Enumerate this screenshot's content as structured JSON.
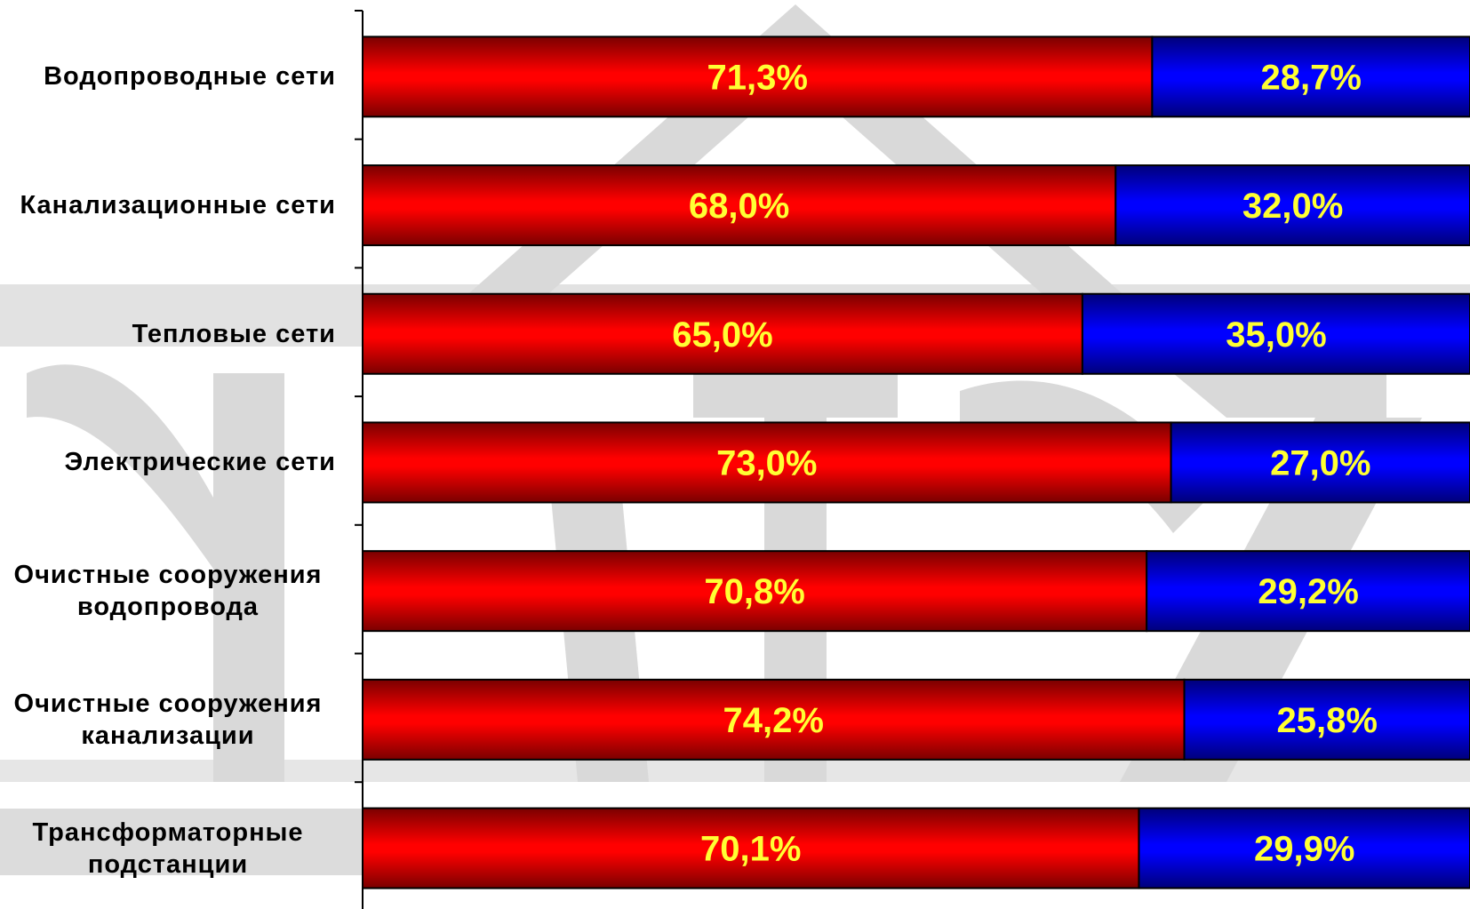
{
  "chart_data": {
    "type": "bar",
    "orientation": "horizontal",
    "stacked": true,
    "categories": [
      [
        "Водопроводные сети"
      ],
      [
        "Канализационные сети"
      ],
      [
        "Тепловые сети"
      ],
      [
        "Электрические сети"
      ],
      [
        "Очистные сооружения",
        "водопровода"
      ],
      [
        "Очистные сооружения",
        "канализации"
      ],
      [
        "Трансформаторные",
        "подстанции"
      ]
    ],
    "series": [
      {
        "color": "#e00000",
        "values": [
          71.3,
          68.0,
          65.0,
          73.0,
          70.8,
          74.2,
          70.1
        ],
        "labels": [
          "71,3%",
          "68,0%",
          "65,0%",
          "73,0%",
          "70,8%",
          "74,2%",
          "70,1%"
        ]
      },
      {
        "color": "#0000dd",
        "values": [
          28.7,
          32.0,
          35.0,
          27.0,
          29.2,
          25.8,
          29.9
        ],
        "labels": [
          "28,7%",
          "32,0%",
          "35,0%",
          "27,0%",
          "29,2%",
          "25,8%",
          "29,9%"
        ]
      }
    ],
    "xlim": [
      0,
      100
    ],
    "label_color": "#ffff33",
    "grid": false,
    "legend": "none"
  }
}
